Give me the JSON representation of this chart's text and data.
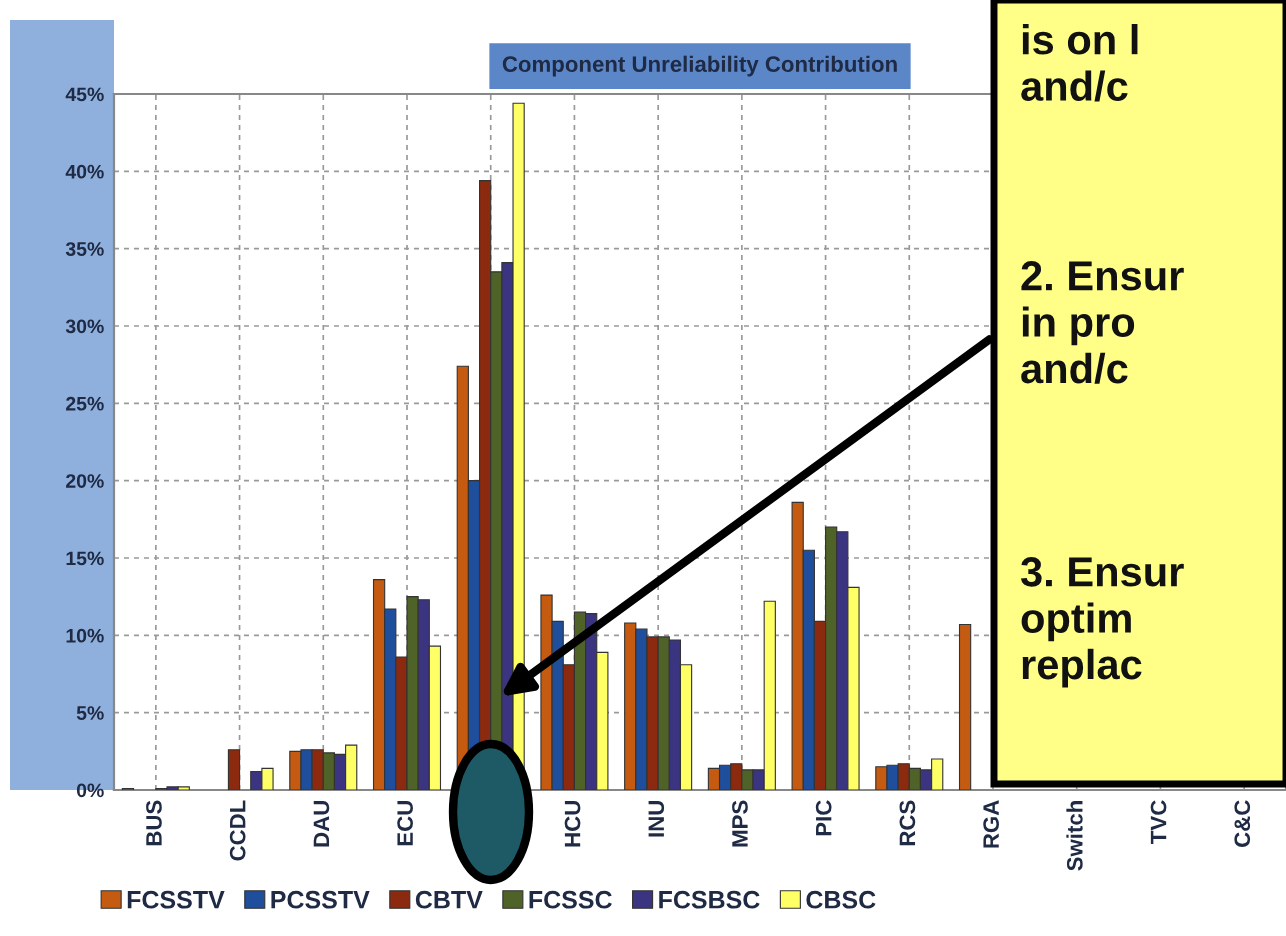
{
  "chart_data": {
    "type": "bar",
    "title": "Component Unreliability Contribution",
    "categories": [
      "BUS",
      "CCDL",
      "DAU",
      "ECU",
      null,
      "HCU",
      "INU",
      "MPS",
      "PIC",
      "RCS",
      "RGA",
      "Switch",
      "TVC",
      "C&C"
    ],
    "series": [
      {
        "name": "FCSSTV",
        "color": "#c55a11",
        "values": [
          0.1,
          null,
          2.5,
          13.6,
          27.4,
          12.6,
          10.8,
          1.4,
          18.6,
          1.5,
          10.7,
          null,
          null,
          null
        ]
      },
      {
        "name": "PCSSTV",
        "color": "#1f4e9c",
        "values": [
          null,
          null,
          2.6,
          11.7,
          20.0,
          10.9,
          10.4,
          1.6,
          15.5,
          1.6,
          null,
          null,
          null,
          null
        ]
      },
      {
        "name": "CBTV",
        "color": "#8b2a0e",
        "values": [
          null,
          2.6,
          2.6,
          8.6,
          39.4,
          8.1,
          9.9,
          1.7,
          10.9,
          1.7,
          null,
          null,
          null,
          null
        ]
      },
      {
        "name": "FCSSC",
        "color": "#4f6228",
        "values": [
          0.1,
          null,
          2.4,
          12.5,
          33.5,
          11.5,
          9.9,
          1.3,
          17.0,
          1.4,
          null,
          null,
          null,
          null
        ]
      },
      {
        "name": "FCSBSC",
        "color": "#3b3480",
        "values": [
          0.2,
          1.2,
          2.3,
          12.3,
          34.1,
          11.4,
          9.7,
          1.3,
          16.7,
          1.3,
          null,
          null,
          null,
          null
        ]
      },
      {
        "name": "CBSC",
        "color": "#ffff66",
        "values": [
          0.2,
          1.4,
          2.9,
          9.3,
          44.4,
          8.9,
          8.1,
          12.2,
          13.1,
          2.0,
          null,
          null,
          null,
          null
        ]
      }
    ],
    "ylim": [
      0,
      45
    ],
    "yticks": [
      {
        "value": 0,
        "label": "0%"
      },
      {
        "value": 5,
        "label": "5%"
      },
      {
        "value": 10,
        "label": "10%"
      },
      {
        "value": 15,
        "label": "15%"
      },
      {
        "value": 20,
        "label": "20%"
      },
      {
        "value": 25,
        "label": "25%"
      },
      {
        "value": 30,
        "label": "30%"
      },
      {
        "value": 35,
        "label": "35%"
      },
      {
        "value": 40,
        "label": "40%"
      },
      {
        "value": 45,
        "label": "45%"
      }
    ],
    "grid": true,
    "legend": "bottom",
    "annotations": [
      "is on l\nand/c",
      "2. Ensur\nin pro\nand/c",
      "3. Ensur\noptim\nreplac"
    ]
  }
}
